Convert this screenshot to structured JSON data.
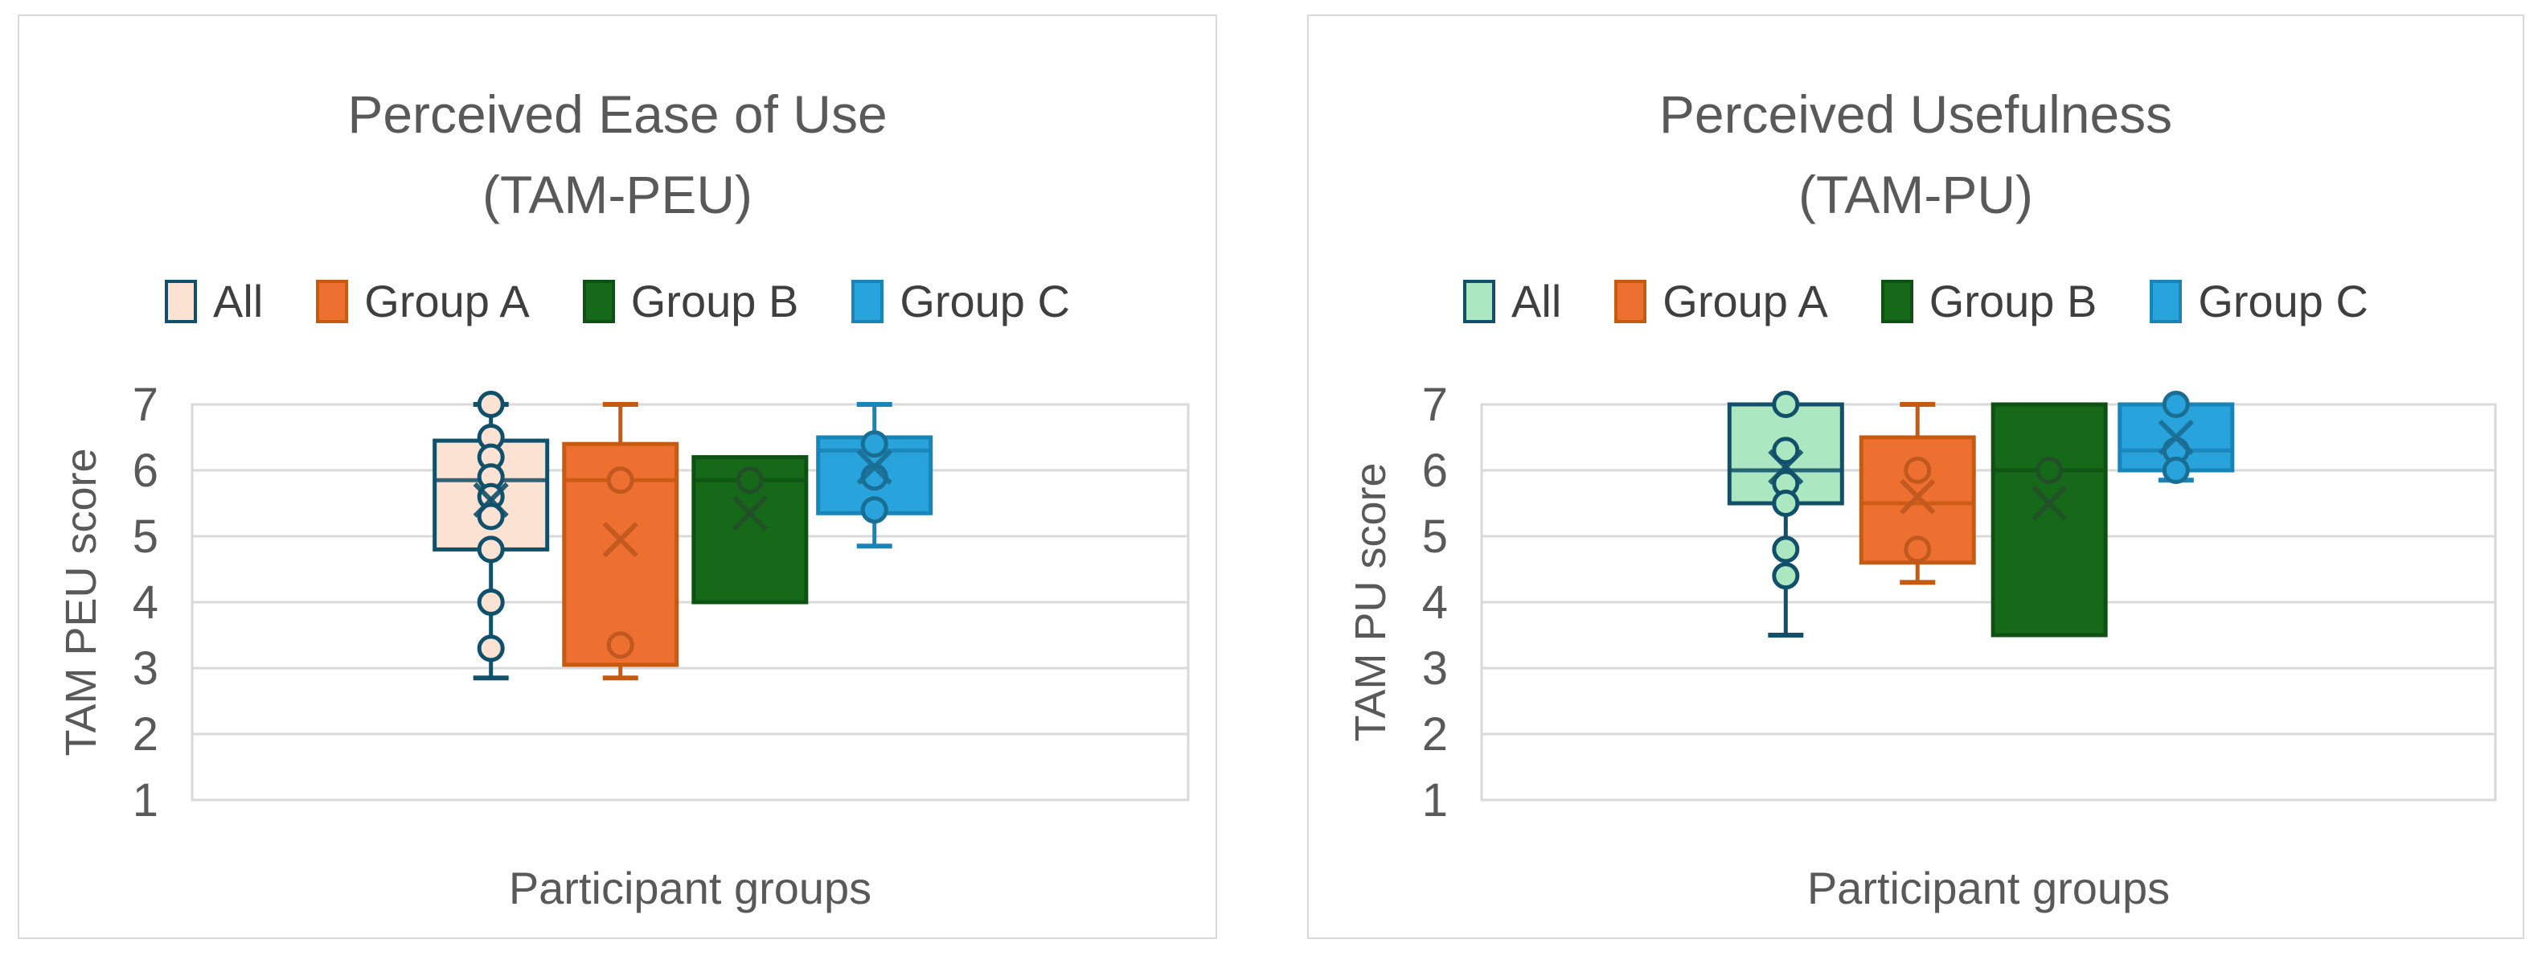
{
  "page": {
    "background": "#ffffff",
    "grid_color": "#d9d9d9",
    "text_color": "#595959"
  },
  "chart_data": [
    {
      "type": "box",
      "title": "Perceived Ease of Use (TAM-PEU)",
      "title_lines": [
        "Perceived Ease of Use",
        "(TAM-PEU)"
      ],
      "xlabel": "Participant groups",
      "ylabel": "TAM PEU score",
      "ylim": [
        1,
        7
      ],
      "y_ticks": [
        7,
        6,
        5,
        4,
        3,
        2,
        1
      ],
      "grid": "horizontal",
      "legend_position": "top",
      "series": [
        {
          "name": "All",
          "fill": "#fbe2d3",
          "stroke": "#11506b",
          "marker_color": "#11506b",
          "q1": 4.8,
          "median": 5.85,
          "q3": 6.45,
          "mean": 5.55,
          "whisker_low": 2.85,
          "whisker_high": 7.0,
          "points": [
            7.0,
            6.5,
            6.2,
            5.9,
            5.6,
            5.3,
            4.8,
            4.0,
            3.3
          ]
        },
        {
          "name": "Group A",
          "fill": "#ee7030",
          "stroke": "#c55a11",
          "marker_color": "#c0581f",
          "q1": 3.05,
          "median": 5.85,
          "q3": 6.4,
          "mean": 4.95,
          "whisker_low": 2.85,
          "whisker_high": 7.0,
          "points": [
            5.85,
            3.35
          ]
        },
        {
          "name": "Group B",
          "fill": "#156919",
          "stroke": "#0e5213",
          "marker_color": "#234f28",
          "q1": 4.0,
          "median": 5.85,
          "q3": 6.2,
          "mean": 5.35,
          "whisker_low": null,
          "whisker_high": null,
          "points": [
            5.85
          ]
        },
        {
          "name": "Group C",
          "fill": "#29a3dc",
          "stroke": "#1884b8",
          "marker_color": "#1a6e94",
          "q1": 5.35,
          "median": 6.3,
          "q3": 6.5,
          "mean": 6.05,
          "whisker_low": 4.85,
          "whisker_high": 7.0,
          "points": [
            6.4,
            5.9,
            5.4
          ]
        }
      ]
    },
    {
      "type": "box",
      "title": "Perceived Usefulness (TAM-PU)",
      "title_lines": [
        "Perceived Usefulness",
        "(TAM-PU)"
      ],
      "xlabel": "Participant groups",
      "ylabel": "TAM PU score",
      "ylim": [
        1,
        7
      ],
      "y_ticks": [
        7,
        6,
        5,
        4,
        3,
        2,
        1
      ],
      "grid": "horizontal",
      "legend_position": "top",
      "series": [
        {
          "name": "All",
          "fill": "#abe7c1",
          "stroke": "#11506b",
          "marker_color": "#11506b",
          "q1": 5.5,
          "median": 6.0,
          "q3": 7.0,
          "mean": 6.05,
          "whisker_low": 3.5,
          "whisker_high": null,
          "points": [
            7.0,
            6.3,
            5.8,
            5.5,
            4.8,
            4.4
          ]
        },
        {
          "name": "Group A",
          "fill": "#ee7030",
          "stroke": "#c55a11",
          "marker_color": "#c0581f",
          "q1": 4.6,
          "median": 5.5,
          "q3": 6.5,
          "mean": 5.6,
          "whisker_low": 4.3,
          "whisker_high": 7.0,
          "points": [
            6.0,
            4.8
          ]
        },
        {
          "name": "Group B",
          "fill": "#156919",
          "stroke": "#0e5213",
          "marker_color": "#234f28",
          "q1": 3.5,
          "median": 6.0,
          "q3": 7.0,
          "mean": 5.5,
          "whisker_low": null,
          "whisker_high": null,
          "points": [
            6.0
          ]
        },
        {
          "name": "Group C",
          "fill": "#29a3dc",
          "stroke": "#1884b8",
          "marker_color": "#1a6e94",
          "q1": 6.0,
          "median": 6.3,
          "q3": 7.0,
          "mean": 6.5,
          "whisker_low": 5.85,
          "whisker_high": null,
          "points": [
            7.0,
            6.3,
            6.0
          ]
        }
      ]
    }
  ]
}
